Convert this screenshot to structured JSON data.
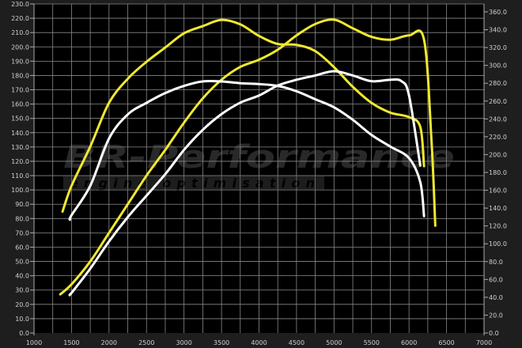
{
  "chart_data": {
    "type": "line",
    "title": "",
    "xlabel": "",
    "ylabel_left": "",
    "ylabel_right": "",
    "xlim": [
      1000,
      7000
    ],
    "ylim_left": [
      0,
      230
    ],
    "ylim_right": [
      0,
      360
    ],
    "x_ticks": [
      "1000",
      "1500",
      "2000",
      "2500",
      "3000",
      "3500",
      "4000",
      "4500",
      "5000",
      "5500",
      "6000",
      "6500",
      "7000"
    ],
    "y_left_ticks": [
      "0.0",
      "10.0",
      "20.0",
      "30.0",
      "40.0",
      "50.0",
      "60.0",
      "70.0",
      "80.0",
      "90.0",
      "100.0",
      "110.0",
      "120.0",
      "130.0",
      "140.0",
      "150.0",
      "160.0",
      "170.0",
      "180.0",
      "190.0",
      "200.0",
      "210.0",
      "220.0",
      "230.0"
    ],
    "y_right_ticks": [
      "0.0",
      "20.0",
      "40.0",
      "60.0",
      "80.0",
      "100.0",
      "120.0",
      "140.0",
      "160.0",
      "180.0",
      "200.0",
      "220.0",
      "240.0",
      "260.0",
      "280.0",
      "300.0",
      "320.0",
      "340.0",
      "360.0"
    ],
    "grid": true,
    "background": "#000000",
    "series": [
      {
        "axis": "right",
        "color": "#f0e830",
        "x": [
          1380,
          1500,
          1750,
          2000,
          2250,
          2500,
          2750,
          3000,
          3250,
          3500,
          3750,
          4000,
          4250,
          4500,
          4750,
          5000,
          5250,
          5500,
          5750,
          6000,
          6150,
          6200
        ],
        "y": [
          136,
          165,
          209,
          258,
          285,
          304,
          320,
          336,
          344,
          351,
          346,
          333,
          324,
          323,
          316,
          298,
          276,
          258,
          247,
          242,
          231,
          187
        ]
      },
      {
        "axis": "left",
        "color": "#f0e830",
        "x": [
          1350,
          1500,
          1750,
          2000,
          2250,
          2500,
          2750,
          3000,
          3250,
          3500,
          3750,
          4000,
          4250,
          4500,
          4750,
          5000,
          5250,
          5500,
          5750,
          6000,
          6200,
          6300,
          6350
        ],
        "y": [
          27,
          34,
          50,
          70,
          90,
          110,
          128,
          147,
          164,
          177,
          186,
          191,
          198,
          208,
          216,
          219,
          213,
          207,
          205,
          208,
          205,
          134,
          75
        ]
      },
      {
        "axis": "right",
        "color": "#ffffff",
        "x": [
          1480,
          1500,
          1750,
          2000,
          2250,
          2500,
          2750,
          3000,
          3250,
          3500,
          3750,
          4000,
          4250,
          4500,
          4750,
          5000,
          5250,
          5500,
          5750,
          6000,
          6150,
          6200
        ],
        "y": [
          127,
          132,
          165,
          218,
          245,
          258,
          269,
          277,
          282,
          282,
          280,
          279,
          277,
          271,
          262,
          253,
          239,
          222,
          209,
          196,
          169,
          131
        ]
      },
      {
        "axis": "left",
        "color": "#ffffff",
        "x": [
          1480,
          1500,
          1750,
          2000,
          2250,
          2500,
          2750,
          3000,
          3250,
          3500,
          3750,
          4000,
          4250,
          4500,
          4750,
          5000,
          5250,
          5500,
          5750,
          5900,
          6000,
          6150
        ],
        "y": [
          27,
          28,
          45,
          64,
          81,
          96,
          111,
          128,
          142,
          153,
          161,
          166,
          173,
          177,
          180,
          183,
          180,
          176,
          177,
          176,
          166,
          117
        ]
      }
    ]
  },
  "watermark": {
    "brand": "BR-Performance",
    "tagline": "engine optimisation"
  }
}
